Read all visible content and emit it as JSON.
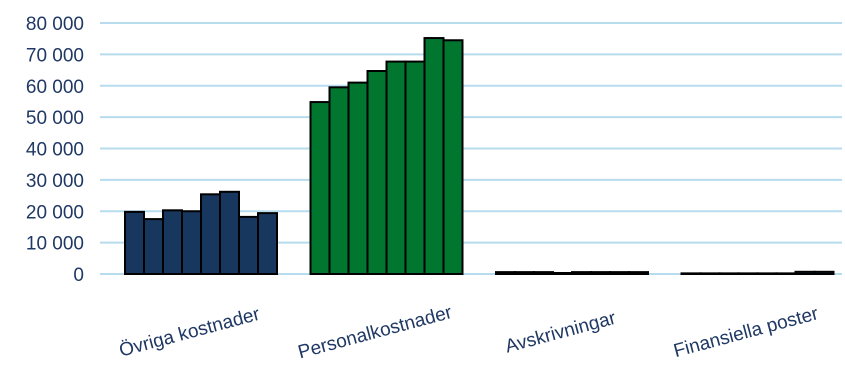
{
  "chart_data": {
    "type": "bar",
    "title": "",
    "xlabel": "",
    "ylabel": "",
    "ylim": [
      0,
      80000
    ],
    "yticks": [
      0,
      10000,
      20000,
      30000,
      40000,
      50000,
      60000,
      70000,
      80000
    ],
    "ytick_labels": [
      "0",
      "10 000",
      "20 000",
      "30 000",
      "40 000",
      "50 000",
      "60 000",
      "70 000",
      "80 000"
    ],
    "grid": true,
    "legend": "none",
    "categories": [
      "Övriga kostnader",
      "Personalkostnader",
      "Avskrivningar",
      "Finansiella poster"
    ],
    "colors": [
      "#17375e",
      "#00762e",
      "#17375e",
      "#17375e"
    ],
    "groups": [
      {
        "category": "Övriga kostnader",
        "values": [
          19800,
          17500,
          20300,
          20000,
          25400,
          26200,
          18200,
          19400
        ]
      },
      {
        "category": "Personalkostnader",
        "values": [
          54800,
          59500,
          61000,
          64700,
          67700,
          67700,
          75200,
          74500
        ]
      },
      {
        "category": "Avskrivningar",
        "values": [
          600,
          600,
          600,
          0,
          600,
          600,
          600,
          600
        ]
      },
      {
        "category": "Finansiella poster",
        "values": [
          200,
          200,
          200,
          200,
          200,
          200,
          700,
          700
        ]
      }
    ]
  }
}
